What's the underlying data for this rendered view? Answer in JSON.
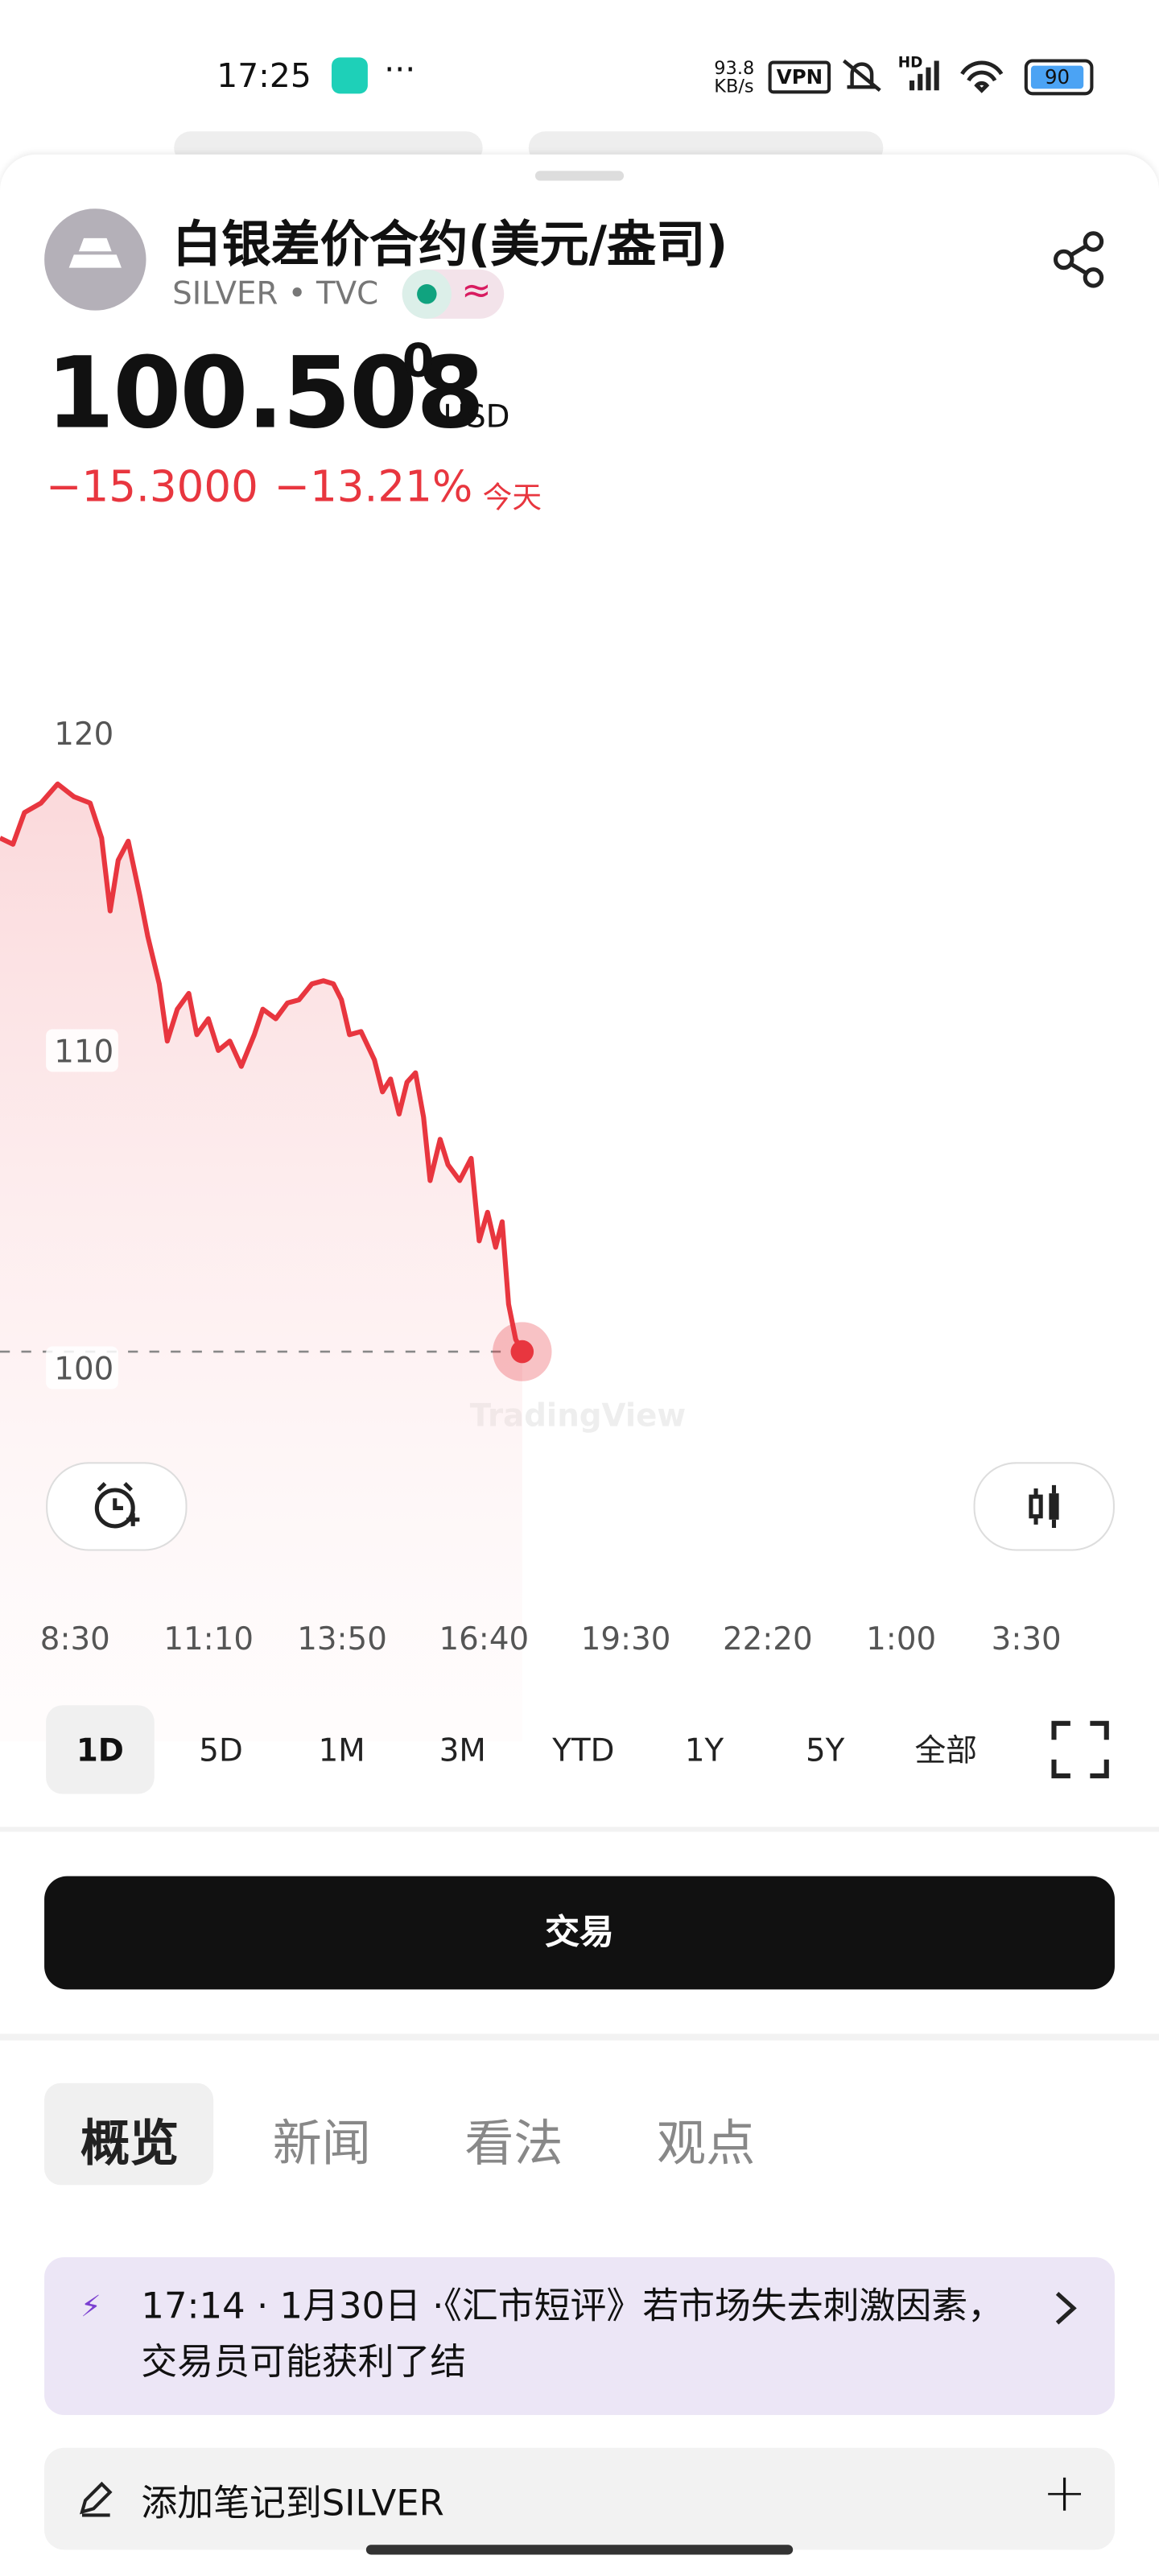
{
  "status": {
    "time": "17:25",
    "net_speed": "93.8",
    "net_unit": "KB/s",
    "vpn": "VPN",
    "hd": "HD",
    "battery": "90"
  },
  "header": {
    "title": "白银差价合约(美元/盎司)",
    "subtitle": "SILVER • TVC"
  },
  "quote": {
    "price": "100.508",
    "price_sup": "0",
    "currency": "USD",
    "change": "−15.3000",
    "change_pct": "−13.21%",
    "period": "今天"
  },
  "chart_data": {
    "type": "line",
    "watermark": "TradingView",
    "x": [
      7,
      7.26,
      7.49,
      7.82,
      8.15,
      8.48,
      8.8,
      9.03,
      9.2,
      9.36,
      9.56,
      9.79,
      9.95,
      10.18,
      10.34,
      10.54,
      10.77,
      10.93,
      11.16,
      11.36,
      11.59,
      11.82,
      12.08,
      12.25,
      12.51,
      12.74,
      12.97,
      13.23,
      13.46,
      13.66,
      13.82,
      13.98,
      14.21,
      14.48,
      14.64,
      14.8,
      14.97,
      15.13,
      15.3,
      15.46,
      15.59,
      15.79,
      15.95,
      16.18,
      16.41,
      16.57,
      16.74,
      16.9,
      17.03,
      17.16,
      17.3,
      17.43
    ],
    "series": [
      {
        "name": "SILVER",
        "color": "#e8363f",
        "values": [
          116.7,
          116.5,
          117.5,
          117.8,
          118.4,
          118.0,
          117.8,
          116.7,
          114.4,
          116.0,
          116.6,
          114.9,
          113.6,
          112.1,
          110.3,
          111.3,
          111.8,
          110.5,
          111.0,
          110.0,
          110.3,
          109.5,
          110.5,
          111.3,
          111.0,
          111.5,
          111.6,
          112.1,
          112.2,
          112.1,
          111.6,
          110.5,
          110.6,
          109.7,
          108.7,
          109.1,
          108.0,
          109.0,
          109.3,
          107.9,
          105.9,
          107.2,
          106.4,
          105.9,
          106.6,
          104.0,
          104.9,
          103.8,
          104.6,
          102.0,
          100.9,
          100.508
        ]
      }
    ],
    "xlim": [
      7,
      30.15
    ],
    "ylim": [
      93.4,
      122.4
    ],
    "yticks": [
      100,
      110,
      120
    ],
    "xticks": [
      {
        "value": 8.5,
        "label": "8:30"
      },
      {
        "value": 11.167,
        "label": "11:10"
      },
      {
        "value": 13.833,
        "label": "13:50"
      },
      {
        "value": 16.667,
        "label": "16:40"
      },
      {
        "value": 19.5,
        "label": "19:30"
      },
      {
        "value": 22.333,
        "label": "22:20"
      },
      {
        "value": 25,
        "label": "1:00"
      },
      {
        "value": 27.5,
        "label": "3:30"
      }
    ]
  },
  "ranges": [
    "1D",
    "5D",
    "1M",
    "3M",
    "YTD",
    "1Y",
    "5Y",
    "全部"
  ],
  "trade_button": "交易",
  "tabs": [
    "概览",
    "新闻",
    "看法",
    "观点"
  ],
  "news": {
    "text": "17:14 · 1月30日 ·《汇市短评》若市场失去刺激因素，交易员可能获利了结"
  },
  "note": {
    "text": "添加笔记到SILVER"
  }
}
